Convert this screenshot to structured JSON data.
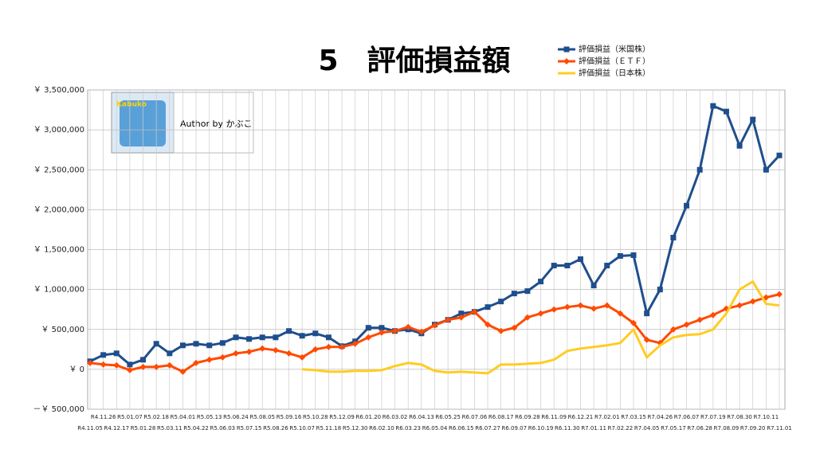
{
  "chart_data": {
    "type": "line",
    "title": "5　評価損益額",
    "annotations": {
      "author": "Author by かぶこ",
      "logo": "Kabuko"
    },
    "categories": [
      "R4.11.05",
      "R4.11.26",
      "R4.12.17",
      "R5.01.07",
      "R5.01.28",
      "R5.02.18",
      "R5.03.11",
      "R5.04.01",
      "R5.04.22",
      "R5.05.13",
      "R5.06.03",
      "R5.06.24",
      "R5.07.15",
      "R5.08.05",
      "R5.08.26",
      "R5.09.16",
      "R5.10.07",
      "R5.10.28",
      "R5.11.18",
      "R5.12.09",
      "R5.12.30",
      "R6.01.20",
      "R6.02.10",
      "R6.03.02",
      "R6.03.23",
      "R6.04.13",
      "R6.05.04",
      "R6.05.25",
      "R6.06.15",
      "R6.07.06",
      "R6.07.27",
      "R6.08.17",
      "R6.09.07",
      "R6.09.28",
      "R6.10.19",
      "R6.11.09",
      "R6.11.30",
      "R6.12.21",
      "R7.01.11",
      "R7.02.01",
      "R7.02.22",
      "R7.03.15",
      "R7.04.05",
      "R7.04.26",
      "R7.05.17",
      "R7.06.07",
      "R7.06.28",
      "R7.07.19",
      "R7.08.09",
      "R7.08.30",
      "R7.09.20",
      "R7.10.11",
      "R7.11.01"
    ],
    "series": [
      {
        "name": "評価損益（米国株）",
        "color": "#1f4e8c",
        "marker": "square",
        "values": [
          100000,
          180000,
          200000,
          60000,
          120000,
          320000,
          200000,
          300000,
          320000,
          300000,
          330000,
          400000,
          380000,
          400000,
          400000,
          480000,
          420000,
          450000,
          400000,
          290000,
          350000,
          520000,
          520000,
          480000,
          500000,
          450000,
          560000,
          620000,
          700000,
          720000,
          780000,
          850000,
          950000,
          980000,
          1100000,
          1300000,
          1300000,
          1380000,
          1050000,
          1300000,
          1420000,
          1430000,
          700000,
          1000000,
          1650000,
          2050000,
          2500000,
          3300000,
          3230000,
          2800000,
          3130000,
          2500000,
          2680000
        ]
      },
      {
        "name": "評価損益（ＥＴＦ）",
        "color": "#ff4a00",
        "marker": "diamond",
        "values": [
          80000,
          60000,
          50000,
          -10000,
          30000,
          30000,
          50000,
          -30000,
          80000,
          120000,
          150000,
          200000,
          220000,
          260000,
          240000,
          200000,
          150000,
          250000,
          280000,
          280000,
          320000,
          400000,
          460000,
          480000,
          530000,
          470000,
          550000,
          620000,
          650000,
          720000,
          560000,
          480000,
          520000,
          650000,
          700000,
          750000,
          780000,
          800000,
          760000,
          800000,
          700000,
          580000,
          370000,
          330000,
          500000,
          560000,
          620000,
          680000,
          760000,
          800000,
          850000,
          900000,
          940000
        ]
      },
      {
        "name": "評価損益（日本株）",
        "color": "#ffcc22",
        "marker": "none",
        "values": [
          null,
          null,
          null,
          null,
          null,
          null,
          null,
          null,
          null,
          null,
          null,
          null,
          null,
          null,
          null,
          null,
          0,
          -10000,
          -30000,
          -30000,
          -20000,
          -20000,
          -10000,
          40000,
          80000,
          60000,
          -20000,
          -40000,
          -30000,
          -40000,
          -50000,
          60000,
          60000,
          70000,
          80000,
          120000,
          230000,
          260000,
          280000,
          300000,
          330000,
          500000,
          150000,
          300000,
          400000,
          430000,
          440000,
          500000,
          700000,
          1000000,
          1100000,
          820000,
          800000
        ]
      }
    ],
    "ylim": [
      -500000,
      3500000
    ],
    "yticks": [
      {
        "value": -500000,
        "label": "－￥ 500,000"
      },
      {
        "value": 0,
        "label": "￥ 0"
      },
      {
        "value": 500000,
        "label": "￥ 500,000"
      },
      {
        "value": 1000000,
        "label": "￥ 1,000,000"
      },
      {
        "value": 1500000,
        "label": "￥ 1,500,000"
      },
      {
        "value": 2000000,
        "label": "￥ 2,000,000"
      },
      {
        "value": 2500000,
        "label": "￥ 2,500,000"
      },
      {
        "value": 3000000,
        "label": "￥ 3,000,000"
      },
      {
        "value": 3500000,
        "label": "￥ 3,500,000"
      }
    ],
    "grid": true,
    "legend": "top-right"
  }
}
